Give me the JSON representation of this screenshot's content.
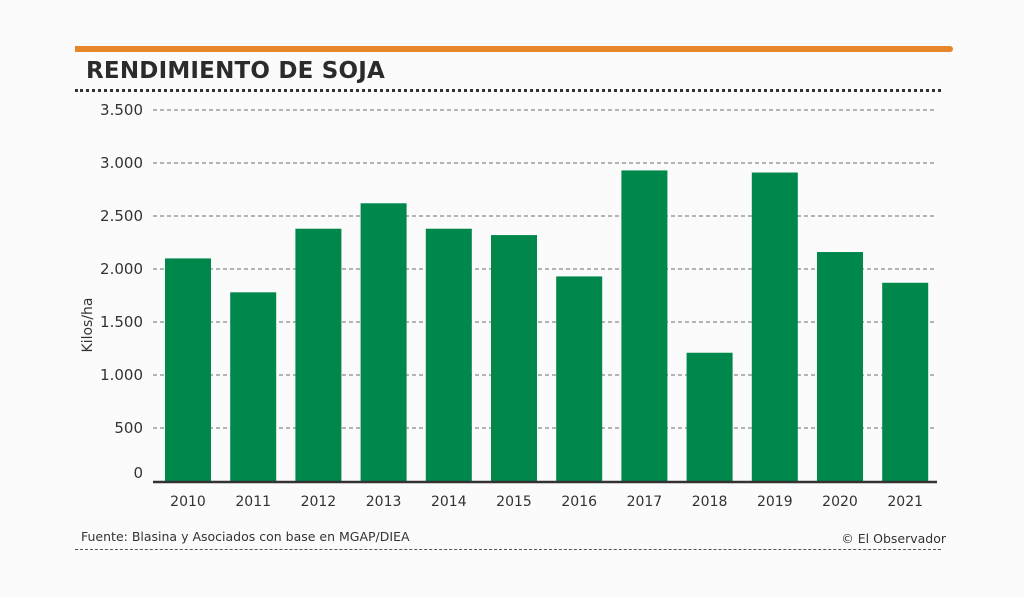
{
  "header": {
    "title": "RENDIMIENTO DE SOJA",
    "accent_color": "#e8862a"
  },
  "footer": {
    "source": "Fuente: Blasina y Asociados con base en MGAP/DIEA",
    "credit": "© El Observador"
  },
  "chart_data": {
    "type": "bar",
    "title": "RENDIMIENTO DE SOJA",
    "xlabel": "",
    "ylabel": "Kilos/ha",
    "categories": [
      "2010",
      "2011",
      "2012",
      "2013",
      "2014",
      "2015",
      "2016",
      "2017",
      "2018",
      "2019",
      "2020",
      "2021"
    ],
    "values": [
      2100,
      1780,
      2380,
      2620,
      2380,
      2320,
      1930,
      2930,
      1210,
      2910,
      2160,
      1870
    ],
    "ylim": [
      0,
      3500
    ],
    "yticks": [
      0,
      500,
      1000,
      1500,
      2000,
      2500,
      3000,
      3500
    ],
    "ytick_labels": [
      "0",
      "500",
      "1.000",
      "1.500",
      "2.000",
      "2.500",
      "3.000",
      "3.500"
    ],
    "grid": true,
    "legend": "none",
    "bar_color": "#00874b"
  }
}
